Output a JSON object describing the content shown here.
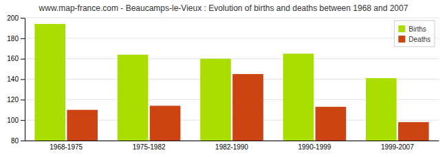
{
  "chart_data": {
    "type": "bar",
    "title": "www.map-france.com - Beaucamps-le-Vieux : Evolution of births and deaths between 1968 and 2007",
    "categories": [
      "1968-1975",
      "1975-1982",
      "1982-1990",
      "1990-1999",
      "1999-2007"
    ],
    "series": [
      {
        "name": "Births",
        "color": "#aadd00",
        "values": [
          194,
          164,
          160,
          165,
          141
        ]
      },
      {
        "name": "Deaths",
        "color": "#cc4411",
        "values": [
          110,
          114,
          145,
          113,
          98
        ]
      }
    ],
    "ylim": [
      80,
      200
    ],
    "yticks": [
      80,
      100,
      120,
      140,
      160,
      180,
      200
    ],
    "grid": true,
    "legend": "upper right"
  }
}
